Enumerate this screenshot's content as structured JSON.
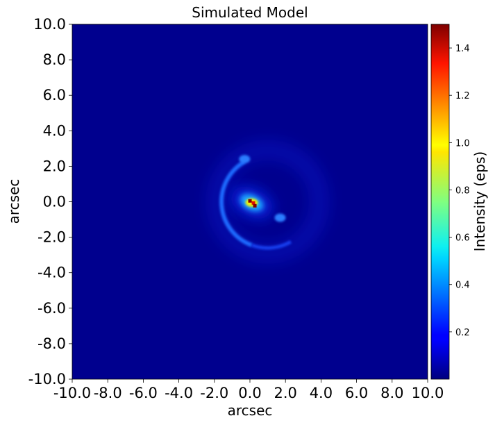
{
  "chart_data": {
    "type": "heatmap",
    "title": "Simulated Model",
    "xlabel": "arcsec",
    "ylabel": "arcsec",
    "xlim": [
      -10.0,
      10.0
    ],
    "ylim": [
      -10.0,
      10.0
    ],
    "x_ticks": [
      "-10.0",
      "-8.0",
      "-6.0",
      "-4.0",
      "-2.0",
      "0.0",
      "2.0",
      "4.0",
      "6.0",
      "8.0",
      "10.0"
    ],
    "y_ticks": [
      "10.0",
      "8.0",
      "6.0",
      "4.0",
      "2.0",
      "0.0",
      "-2.0",
      "-4.0",
      "-6.0",
      "-8.0",
      "-10.0"
    ],
    "colorbar": {
      "label": "Intensity (eps)",
      "colormap": "jet",
      "range": [
        0.0,
        1.5
      ],
      "ticks": [
        "1.4",
        "1.2",
        "1.0",
        "0.8",
        "0.6",
        "0.4",
        "0.2"
      ]
    },
    "features": [
      {
        "type": "core",
        "x": 0.1,
        "y": -0.05,
        "peak": 1.5
      },
      {
        "type": "arc",
        "center": [
          1.0,
          0.0
        ],
        "radius": 2.6,
        "peak": 0.4
      },
      {
        "type": "knot",
        "x": 1.7,
        "y": -0.9,
        "peak": 0.35
      },
      {
        "type": "knot",
        "x": -0.3,
        "y": 2.4,
        "peak": 0.35
      }
    ]
  }
}
